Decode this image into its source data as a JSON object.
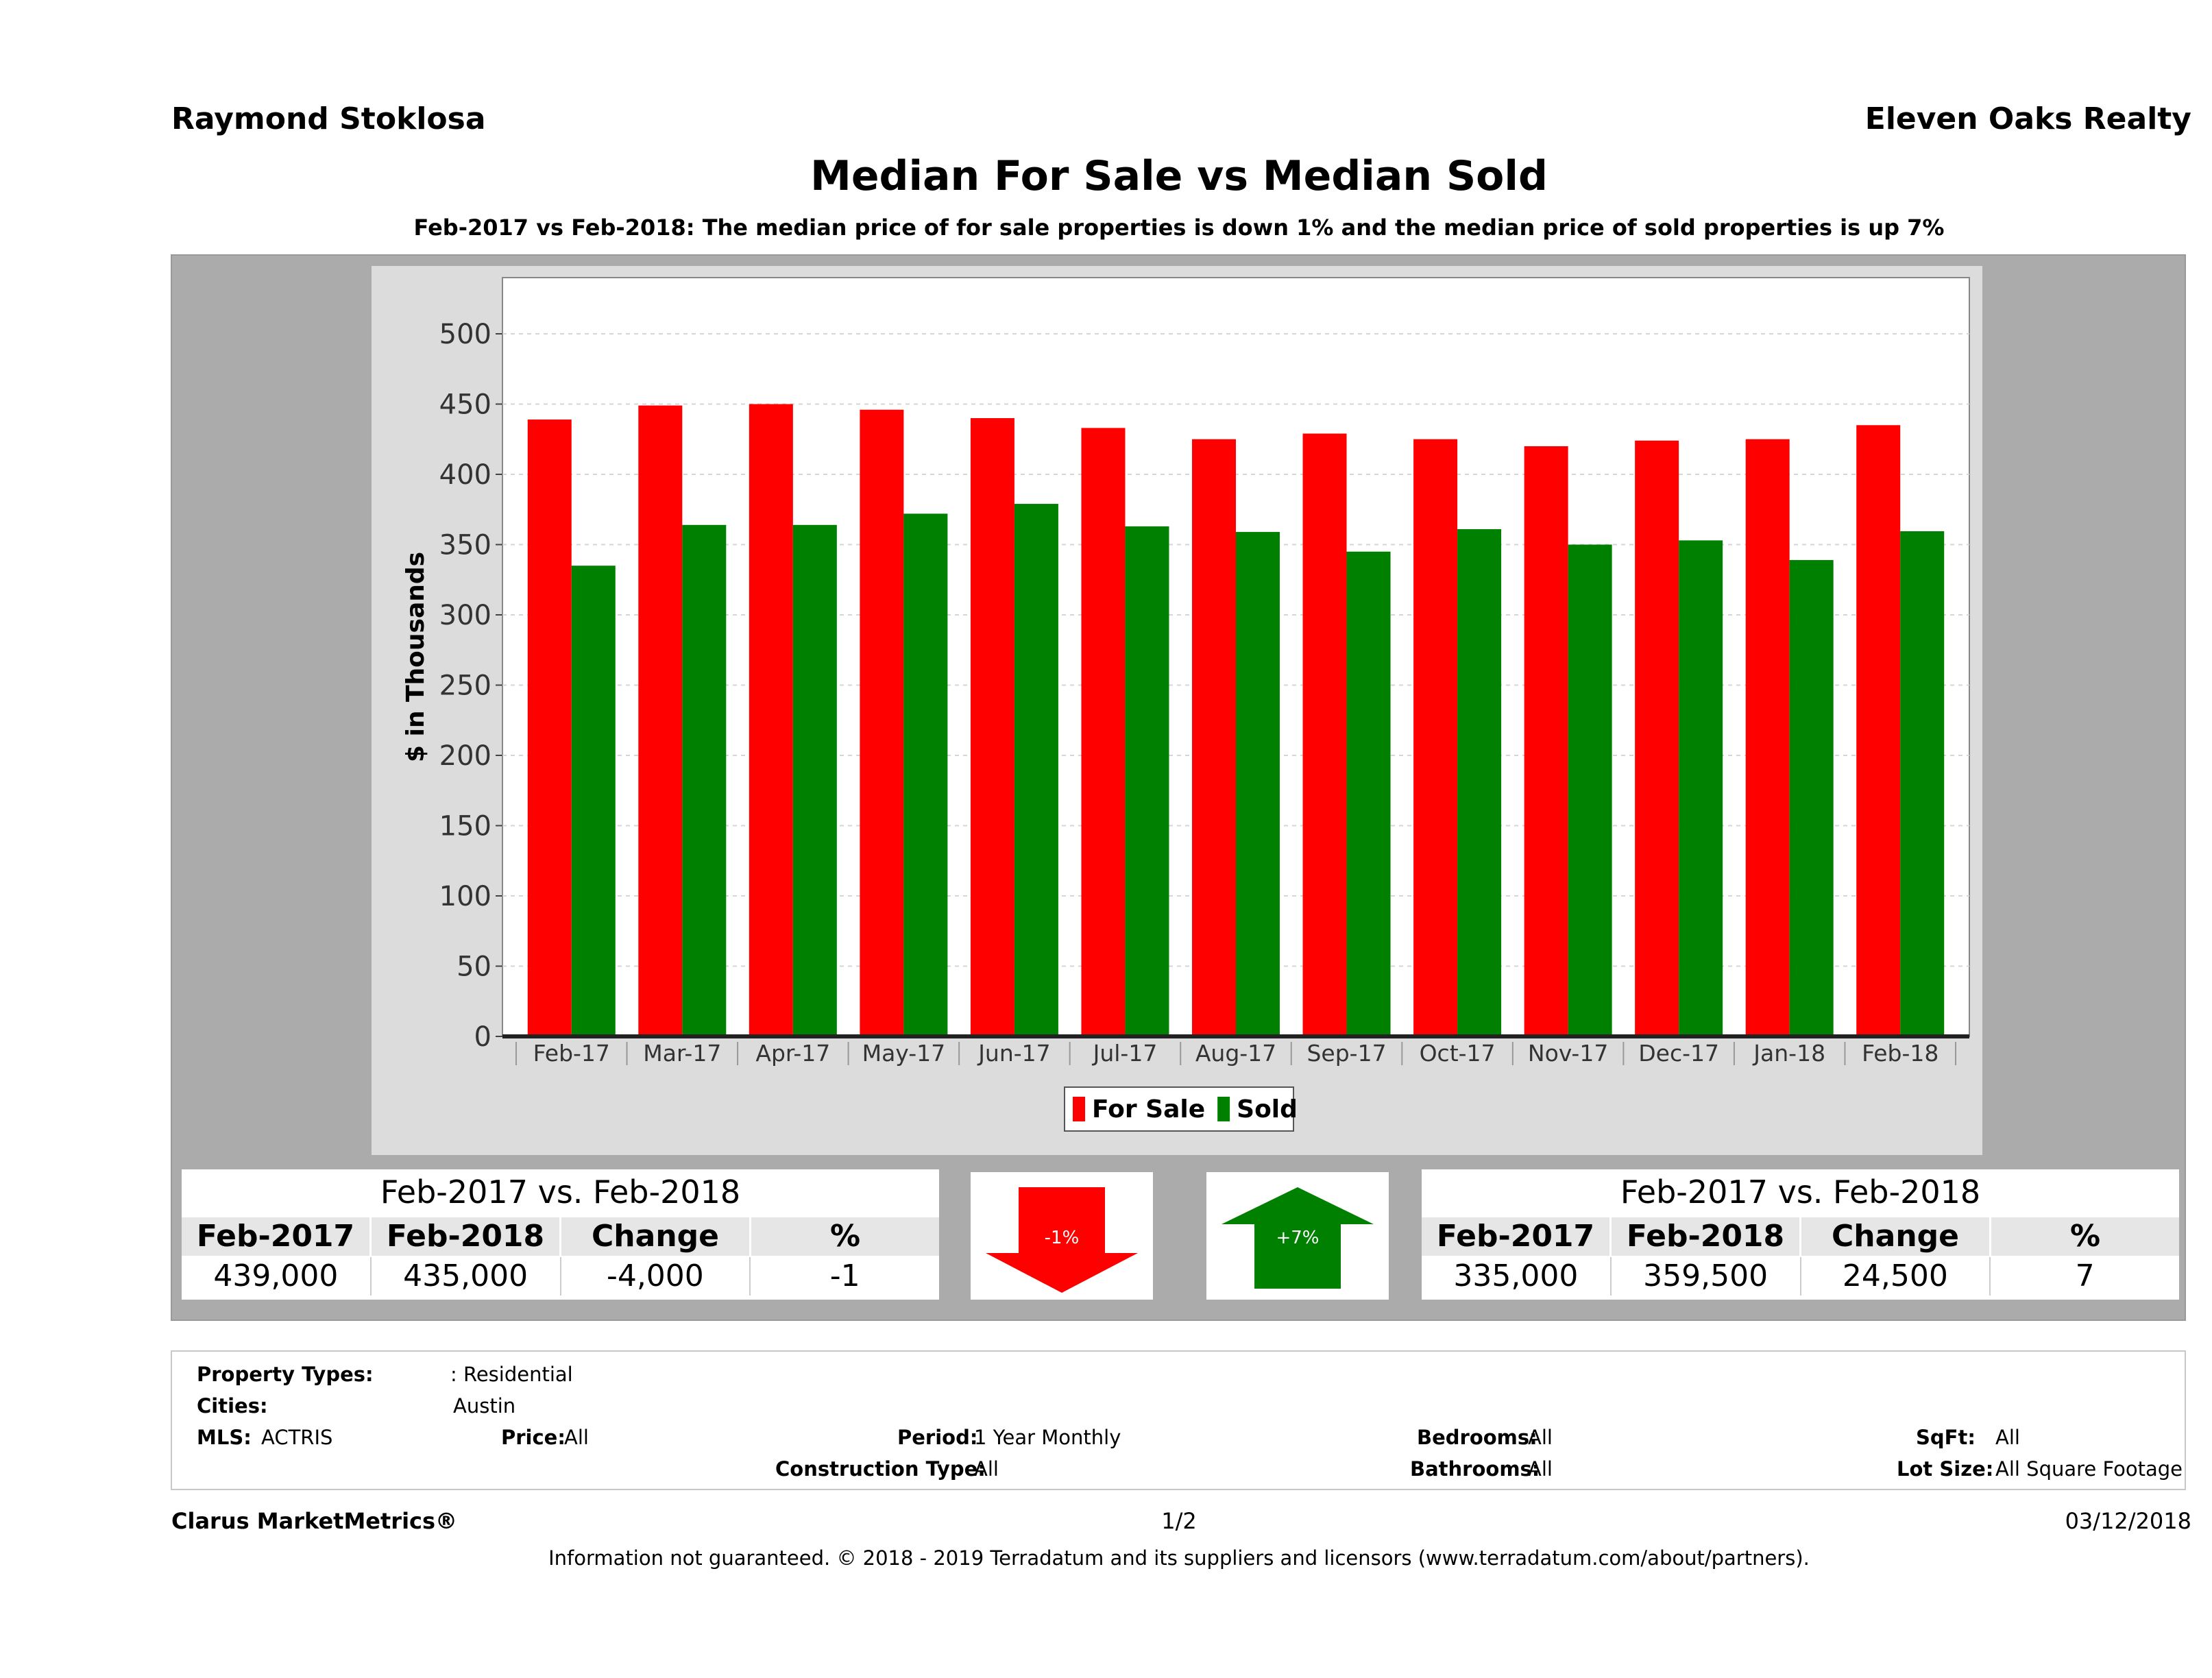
{
  "header": {
    "agent": "Raymond Stoklosa",
    "brokerage": "Eleven Oaks Realty",
    "title": "Median For Sale vs Median Sold",
    "subtitle": "Feb-2017 vs Feb-2018: The median price of for sale properties is down 1% and the median price of sold properties is up 7%"
  },
  "chart_data": {
    "type": "bar",
    "ylabel": "$ in Thousands",
    "xlabel": "",
    "ylim": [
      0,
      540
    ],
    "yticks": [
      0,
      50,
      100,
      150,
      200,
      250,
      300,
      350,
      400,
      450,
      500
    ],
    "grid": true,
    "legend_position": "bottom",
    "categories": [
      "Feb-17",
      "Mar-17",
      "Apr-17",
      "May-17",
      "Jun-17",
      "Jul-17",
      "Aug-17",
      "Sep-17",
      "Oct-17",
      "Nov-17",
      "Dec-17",
      "Jan-18",
      "Feb-18"
    ],
    "series": [
      {
        "name": "For Sale",
        "color": "#ff0000",
        "values": [
          439,
          449,
          450,
          446,
          440,
          433,
          425,
          429,
          425,
          420,
          424,
          425,
          435
        ]
      },
      {
        "name": "Sold",
        "color": "#008000",
        "values": [
          335,
          364,
          364,
          372,
          379,
          363,
          359,
          345,
          361,
          350,
          353,
          339,
          359.5
        ]
      }
    ]
  },
  "for_sale_table": {
    "heading": "Feb-2017 vs. Feb-2018",
    "columns": [
      "Feb-2017",
      "Feb-2018",
      "Change",
      "%"
    ],
    "values": [
      "439,000",
      "435,000",
      "-4,000",
      "-1"
    ]
  },
  "sold_table": {
    "heading": "Feb-2017 vs. Feb-2018",
    "columns": [
      "Feb-2017",
      "Feb-2018",
      "Change",
      "%"
    ],
    "values": [
      "335,000",
      "359,500",
      "24,500",
      "7"
    ]
  },
  "arrows": {
    "down": {
      "label": "-1%",
      "color": "#ff0000"
    },
    "up": {
      "label": "+7%",
      "color": "#008000"
    }
  },
  "criteria": {
    "property_types_label": "Property Types:",
    "property_types_value": ": Residential",
    "cities_label": "Cities:",
    "cities_value": "Austin",
    "mls_label": "MLS:",
    "mls_value": "ACTRIS",
    "price_label": "Price:",
    "price_value": "All",
    "period_label": "Period:",
    "period_value": "1 Year Monthly",
    "construction_label": "Construction Type:",
    "construction_value": "All",
    "bedrooms_label": "Bedrooms:",
    "bedrooms_value": "All",
    "bathrooms_label": "Bathrooms:",
    "bathrooms_value": "All",
    "sqft_label": "SqFt:",
    "sqft_value": "All",
    "lotsize_label": "Lot Size:",
    "lotsize_value": "All Square Footage"
  },
  "footer": {
    "brand": "Clarus MarketMetrics®",
    "page": "1/2",
    "date": "03/12/2018",
    "disclaimer": "Information not guaranteed. © 2018 - 2019 Terradatum and its suppliers and licensors (www.terradatum.com/about/partners)."
  }
}
